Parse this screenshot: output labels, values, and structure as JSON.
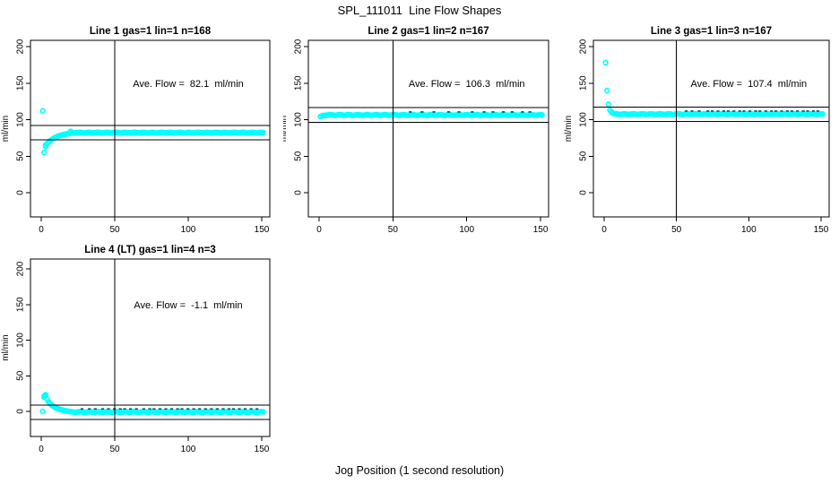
{
  "title": "SPL_111011  Line Flow Shapes",
  "xlabel": "Jog Position (1 second resolution)",
  "ylabel": "ml/min",
  "colors": {
    "marker": "#00ffff",
    "marker_dark": "#005560",
    "axis": "#000000",
    "text": "#000000",
    "background": "#ffffff"
  },
  "chart_data": [
    {
      "type": "scatter",
      "title": "Line 1 gas=1 lin=1 n=168",
      "gas": 1,
      "lin": 1,
      "n": 168,
      "annotation": "Ave. Flow =  82.1  ml/min",
      "avg_flow": 82.1,
      "ylabel": "ml/min",
      "xticks": [
        0,
        50,
        100,
        150
      ],
      "yticks": [
        0,
        50,
        100,
        150,
        200
      ],
      "xlim": [
        -7,
        156
      ],
      "ylim": [
        -33,
        209
      ],
      "vline_x": 50,
      "hlines": [
        92.1,
        72.1
      ],
      "points": [
        [
          1,
          112
        ],
        [
          2,
          55
        ],
        [
          3,
          63
        ],
        [
          3,
          65.5
        ],
        [
          4,
          67
        ],
        [
          5,
          69.5
        ],
        [
          6,
          71
        ],
        [
          7,
          72.5
        ],
        [
          8,
          74
        ],
        [
          9,
          75
        ],
        [
          10,
          76
        ],
        [
          11,
          77
        ],
        [
          12,
          77.8
        ],
        [
          13,
          78.5
        ],
        [
          14,
          79
        ],
        [
          15,
          79.6
        ],
        [
          16,
          80
        ],
        [
          17,
          80.5
        ],
        [
          18,
          80.8
        ],
        [
          19,
          81.2
        ],
        [
          20,
          84
        ],
        [
          20,
          81.5
        ]
      ],
      "plateau": {
        "x_from": 21,
        "x_to": 151,
        "x_step": 1,
        "y": 82.2
      },
      "dark_dashes_x": []
    },
    {
      "type": "scatter",
      "title": "Line 2 gas=1 lin=2 n=167",
      "gas": 1,
      "lin": 2,
      "n": 167,
      "annotation": "Ave. Flow =  106.3  ml/min",
      "avg_flow": 106.3,
      "ylabel": "ml/min",
      "xticks": [
        0,
        50,
        100,
        150
      ],
      "yticks": [
        0,
        50,
        100,
        150,
        200
      ],
      "xlim": [
        -7,
        156
      ],
      "ylim": [
        -33,
        209
      ],
      "vline_x": 50,
      "hlines": [
        116.3,
        96.3
      ],
      "points": [
        [
          1,
          104.3
        ],
        [
          2,
          105.2
        ],
        [
          3,
          105.8
        ]
      ],
      "plateau": {
        "x_from": 4,
        "x_to": 151,
        "x_step": 1,
        "y": 106.4
      },
      "dark_dashes_x": [
        62,
        70,
        78,
        88,
        95,
        104,
        112,
        118,
        125,
        131,
        138,
        143
      ]
    },
    {
      "type": "scatter",
      "title": "Line 3 gas=1 lin=3 n=167",
      "gas": 1,
      "lin": 3,
      "n": 167,
      "annotation": "Ave. Flow =  107.4  ml/min",
      "avg_flow": 107.4,
      "ylabel": "ml/min",
      "xticks": [
        0,
        50,
        100,
        150
      ],
      "yticks": [
        0,
        50,
        100,
        150,
        200
      ],
      "xlim": [
        -7,
        156
      ],
      "ylim": [
        -33,
        209
      ],
      "vline_x": 50,
      "hlines": [
        117.4,
        97.4
      ],
      "points": [
        [
          1,
          178
        ],
        [
          2,
          140
        ],
        [
          3,
          121
        ],
        [
          4,
          113
        ],
        [
          5,
          110.5
        ],
        [
          6,
          109
        ],
        [
          7,
          108.2
        ]
      ],
      "plateau": {
        "x_from": 8,
        "x_to": 151,
        "x_step": 1,
        "y": 107.6
      },
      "dark_dashes_x": [
        57,
        61,
        66,
        72,
        75,
        79,
        83,
        86,
        90,
        94,
        97,
        101,
        105,
        108,
        112,
        116,
        119,
        123,
        127,
        130,
        134,
        138,
        141,
        145,
        148
      ]
    },
    {
      "type": "scatter",
      "title": "Line 4 (LT) gas=1 lin=4 n=3",
      "gas": 1,
      "lin": 4,
      "n": 3,
      "annotation": "Ave. Flow =  -1.1  ml/min",
      "avg_flow": -1.1,
      "ylabel": "ml/min",
      "xticks": [
        0,
        50,
        100,
        150
      ],
      "yticks": [
        0,
        50,
        100,
        150,
        200
      ],
      "xlim": [
        -7,
        156
      ],
      "ylim": [
        -35,
        214
      ],
      "vline_x": 50,
      "hlines": [
        8.9,
        -11.1
      ],
      "points": [
        [
          1,
          0
        ],
        [
          2,
          21.5
        ],
        [
          2,
          20
        ],
        [
          3,
          23.5
        ],
        [
          3,
          22
        ],
        [
          4,
          17
        ],
        [
          5,
          13.5
        ],
        [
          6,
          11
        ],
        [
          7,
          9
        ],
        [
          8,
          7.5
        ],
        [
          9,
          6
        ],
        [
          10,
          5
        ],
        [
          11,
          4.2
        ],
        [
          12,
          3.4
        ],
        [
          13,
          2.7
        ],
        [
          14,
          2.1
        ],
        [
          15,
          1.6
        ],
        [
          16,
          1.1
        ],
        [
          17,
          0.7
        ],
        [
          18,
          0.3
        ],
        [
          19,
          0
        ],
        [
          20,
          -0.3
        ]
      ],
      "plateau": {
        "x_from": 21,
        "x_to": 151,
        "x_step": 1,
        "y": -0.8
      },
      "dark_dashes_x": [
        28,
        33,
        37,
        42,
        46,
        50,
        54,
        57,
        61,
        65,
        70,
        74,
        77,
        81,
        85,
        89,
        93,
        96,
        100,
        104,
        108,
        112,
        116,
        120,
        124,
        128,
        131,
        135,
        139,
        143,
        147
      ]
    }
  ]
}
